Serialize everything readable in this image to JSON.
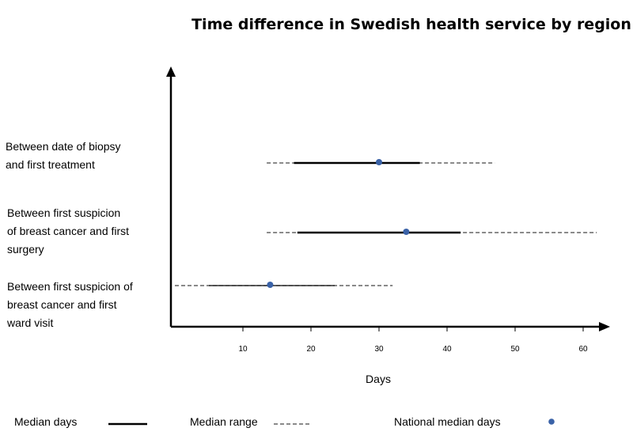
{
  "chart_data": {
    "type": "range",
    "title": "Time difference in Swedish health service by region",
    "xlabel": "Days",
    "xticks": [
      10,
      20,
      30,
      40,
      50,
      60
    ],
    "xlim": [
      0,
      63
    ],
    "grid": false,
    "legend": {
      "placement": "bottom",
      "items": [
        {
          "label": "Median days",
          "style": "solid"
        },
        {
          "label": "Median range",
          "style": "dashed"
        },
        {
          "label": "National median days",
          "style": "dot"
        }
      ]
    },
    "rows": [
      {
        "label_lines": [
          "Between date of biopsy",
          "and first treatment"
        ],
        "median_days": [
          17.5,
          36
        ],
        "median_range": [
          13.5,
          47
        ],
        "national_median": 30
      },
      {
        "label_lines": [
          "Between first suspicion",
          "of breast cancer and first",
          "surgery"
        ],
        "median_days": [
          18,
          42
        ],
        "median_range": [
          13.5,
          62
        ],
        "national_median": 34
      },
      {
        "label_lines": [
          "Between first suspicion of",
          "breast cancer and first",
          "ward visit"
        ],
        "median_days": [
          5,
          23.5
        ],
        "median_range": [
          0,
          32
        ],
        "national_median": 14
      }
    ],
    "colors": {
      "median": "#000000",
      "range": "#444444",
      "national": "#3a62a7"
    }
  }
}
